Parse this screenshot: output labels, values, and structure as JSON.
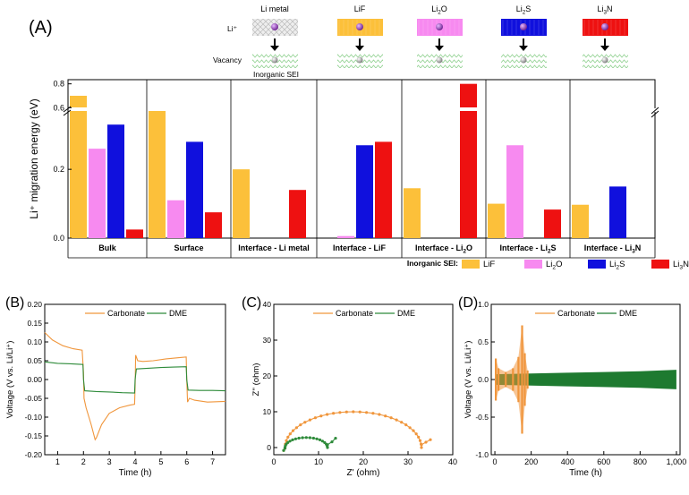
{
  "colors": {
    "LiF": "#fcc03a",
    "Li2O": "#f78af0",
    "Li2S": "#1010dd",
    "Li3N": "#ee1111",
    "carbonate": "#f0963c",
    "dme": "#2e8b3a",
    "dme_fill": "#1e7a30"
  },
  "panel_a": {
    "label": "(A)",
    "li_ion_label": "Li⁺",
    "vacancy_label": "Vacancy",
    "sei_label": "Inorganic SEI",
    "materials": [
      {
        "name": "Li metal",
        "key": "metal",
        "sub": ""
      },
      {
        "name": "LiF",
        "key": "LiF",
        "sub": ""
      },
      {
        "name": "Li",
        "key": "Li2O",
        "sub": "2",
        "tail": "O"
      },
      {
        "name": "Li",
        "key": "Li2S",
        "sub": "2",
        "tail": "S"
      },
      {
        "name": "Li",
        "key": "Li3N",
        "sub": "3",
        "tail": "N"
      }
    ],
    "ylabel": "Li⁺ migration energy (eV)",
    "legend_title": "Inorganic SEI:",
    "legend": [
      {
        "key": "LiF",
        "text": "LiF",
        "sub": "",
        "tail": ""
      },
      {
        "key": "Li2O",
        "text": "Li",
        "sub": "2",
        "tail": "O"
      },
      {
        "key": "Li2S",
        "text": "Li",
        "sub": "2",
        "tail": "S"
      },
      {
        "key": "Li3N",
        "text": "Li",
        "sub": "3",
        "tail": "N"
      }
    ]
  },
  "chart_data": [
    {
      "type": "bar",
      "panel": "A",
      "ylabel": "Li⁺ migration energy (eV)",
      "broken_axis": {
        "lower": [
          0,
          0.38
        ],
        "upper": [
          0.58,
          0.82
        ]
      },
      "yticks_lower": [
        "0.0",
        "0.2"
      ],
      "yticks_upper": [
        "0.6",
        "0.8"
      ],
      "categories": [
        "Bulk",
        "Surface",
        "Interface - Li metal",
        "Interface - LiF",
        "Interface - Li2O",
        "Interface - Li2S",
        "Interface - Li3N"
      ],
      "category_labels": [
        {
          "text": "Bulk",
          "sub": "",
          "tail": ""
        },
        {
          "text": "Surface",
          "sub": "",
          "tail": ""
        },
        {
          "text": "Interface - Li metal",
          "sub": "",
          "tail": ""
        },
        {
          "text": "Interface - LiF",
          "sub": "",
          "tail": ""
        },
        {
          "text": "Interface - Li",
          "sub": "2",
          "tail": "O"
        },
        {
          "text": "Interface - Li",
          "sub": "2",
          "tail": "S"
        },
        {
          "text": "Interface - Li",
          "sub": "3",
          "tail": "N"
        }
      ],
      "series": [
        {
          "name": "LiF",
          "values": [
            0.7,
            0.59,
            0.2,
            0.0,
            0.145,
            0.1,
            0.097
          ]
        },
        {
          "name": "Li2O",
          "values": [
            0.26,
            0.11,
            0.0,
            0.006,
            0.0,
            0.27,
            0.0
          ]
        },
        {
          "name": "Li2S",
          "values": [
            0.33,
            0.28,
            0.0,
            0.27,
            0.0,
            0.0,
            0.15
          ]
        },
        {
          "name": "Li3N",
          "values": [
            0.025,
            0.075,
            0.14,
            0.28,
            0.8,
            0.083,
            0.0
          ]
        }
      ]
    },
    {
      "type": "line",
      "panel": "B",
      "label": "(B)",
      "xlabel": "Time (h)",
      "ylabel": "Voltage (V vs. Li/Li⁺)",
      "xlim": [
        0.5,
        7.5
      ],
      "ylim": [
        -0.2,
        0.2
      ],
      "xticks": [
        1,
        2,
        3,
        4,
        5,
        6,
        7
      ],
      "yticks": [
        -0.2,
        -0.15,
        -0.1,
        -0.05,
        0.0,
        0.05,
        0.1,
        0.15,
        0.2
      ],
      "ytick_labels": [
        "-0.20",
        "-0.15",
        "-0.10",
        "-0.05",
        "0.00",
        "0.05",
        "0.10",
        "0.15",
        "0.20"
      ],
      "series": [
        {
          "name": "Carbonate",
          "points": [
            [
              0.5,
              0.125
            ],
            [
              0.8,
              0.105
            ],
            [
              1.2,
              0.09
            ],
            [
              1.6,
              0.082
            ],
            [
              1.95,
              0.078
            ],
            [
              2.0,
              0.02
            ],
            [
              2.02,
              -0.05
            ],
            [
              2.1,
              -0.075
            ],
            [
              2.3,
              -0.12
            ],
            [
              2.45,
              -0.16
            ],
            [
              2.5,
              -0.155
            ],
            [
              2.7,
              -0.12
            ],
            [
              3.0,
              -0.09
            ],
            [
              3.4,
              -0.075
            ],
            [
              3.8,
              -0.068
            ],
            [
              3.98,
              -0.066
            ],
            [
              4.0,
              -0.02
            ],
            [
              4.02,
              0.065
            ],
            [
              4.1,
              0.05
            ],
            [
              4.3,
              0.048
            ],
            [
              4.7,
              0.05
            ],
            [
              5.2,
              0.055
            ],
            [
              5.7,
              0.058
            ],
            [
              5.98,
              0.06
            ],
            [
              6.0,
              0.0
            ],
            [
              6.03,
              -0.06
            ],
            [
              6.1,
              -0.05
            ],
            [
              6.3,
              -0.055
            ],
            [
              6.8,
              -0.06
            ],
            [
              7.5,
              -0.058
            ]
          ]
        },
        {
          "name": "DME",
          "points": [
            [
              0.5,
              0.047
            ],
            [
              1.0,
              0.043
            ],
            [
              1.5,
              0.042
            ],
            [
              1.98,
              0.04
            ],
            [
              2.0,
              0.0
            ],
            [
              2.05,
              -0.03
            ],
            [
              2.5,
              -0.032
            ],
            [
              3.0,
              -0.033
            ],
            [
              3.5,
              -0.035
            ],
            [
              3.98,
              -0.036
            ],
            [
              4.0,
              0.0
            ],
            [
              4.05,
              0.028
            ],
            [
              4.5,
              0.03
            ],
            [
              5.0,
              0.032
            ],
            [
              5.5,
              0.033
            ],
            [
              5.98,
              0.034
            ],
            [
              6.0,
              0.0
            ],
            [
              6.05,
              -0.028
            ],
            [
              6.5,
              -0.029
            ],
            [
              7.0,
              -0.029
            ],
            [
              7.5,
              -0.03
            ]
          ]
        }
      ]
    },
    {
      "type": "scatter",
      "panel": "C",
      "label": "(C)",
      "xlabel": "Z' (ohm)",
      "ylabel": "Z'' (ohm)",
      "xlim": [
        0,
        40
      ],
      "ylim": [
        -2,
        40
      ],
      "xticks": [
        0,
        10,
        20,
        30,
        40
      ],
      "yticks": [
        0,
        10,
        20,
        30,
        40
      ],
      "series": [
        {
          "name": "Carbonate",
          "arc": {
            "start": 2.5,
            "end": 33,
            "height": 10
          },
          "tail": [
            [
              33,
              0.8
            ],
            [
              34,
              1.5
            ],
            [
              35,
              2.2
            ]
          ]
        },
        {
          "name": "DME",
          "arc": {
            "start": 2.5,
            "end": 12,
            "height": 2.8
          },
          "tail": [
            [
              12,
              0.8
            ],
            [
              13,
              1.6
            ],
            [
              13.8,
              2.6
            ]
          ]
        }
      ]
    },
    {
      "type": "area",
      "panel": "D",
      "label": "(D)",
      "xlabel": "Time (h)",
      "ylabel": "Voltage (V vs. Li/Li⁺)",
      "xlim": [
        -20,
        1020
      ],
      "ylim": [
        -1.0,
        1.0
      ],
      "xticks": [
        0,
        200,
        400,
        600,
        800,
        1000
      ],
      "xtick_labels": [
        "0",
        "200",
        "400",
        "600",
        "800",
        "1,000"
      ],
      "yticks": [
        -1.0,
        -0.5,
        0.0,
        0.5,
        1.0
      ],
      "ytick_labels": [
        "-1.0",
        "-0.5",
        "0.0",
        "0.5",
        "1.0"
      ],
      "series": [
        {
          "name": "DME",
          "envelope": [
            [
              0,
              0.07
            ],
            [
              200,
              0.08
            ],
            [
              400,
              0.09
            ],
            [
              600,
              0.1
            ],
            [
              800,
              0.11
            ],
            [
              1000,
              0.13
            ]
          ]
        },
        {
          "name": "Carbonate",
          "spikes": [
            [
              5,
              0.28
            ],
            [
              20,
              0.15
            ],
            [
              60,
              0.1
            ],
            [
              100,
              0.15
            ],
            [
              130,
              0.3
            ],
            [
              150,
              0.72
            ],
            [
              165,
              0.35
            ],
            [
              180,
              0.12
            ]
          ]
        }
      ]
    }
  ]
}
